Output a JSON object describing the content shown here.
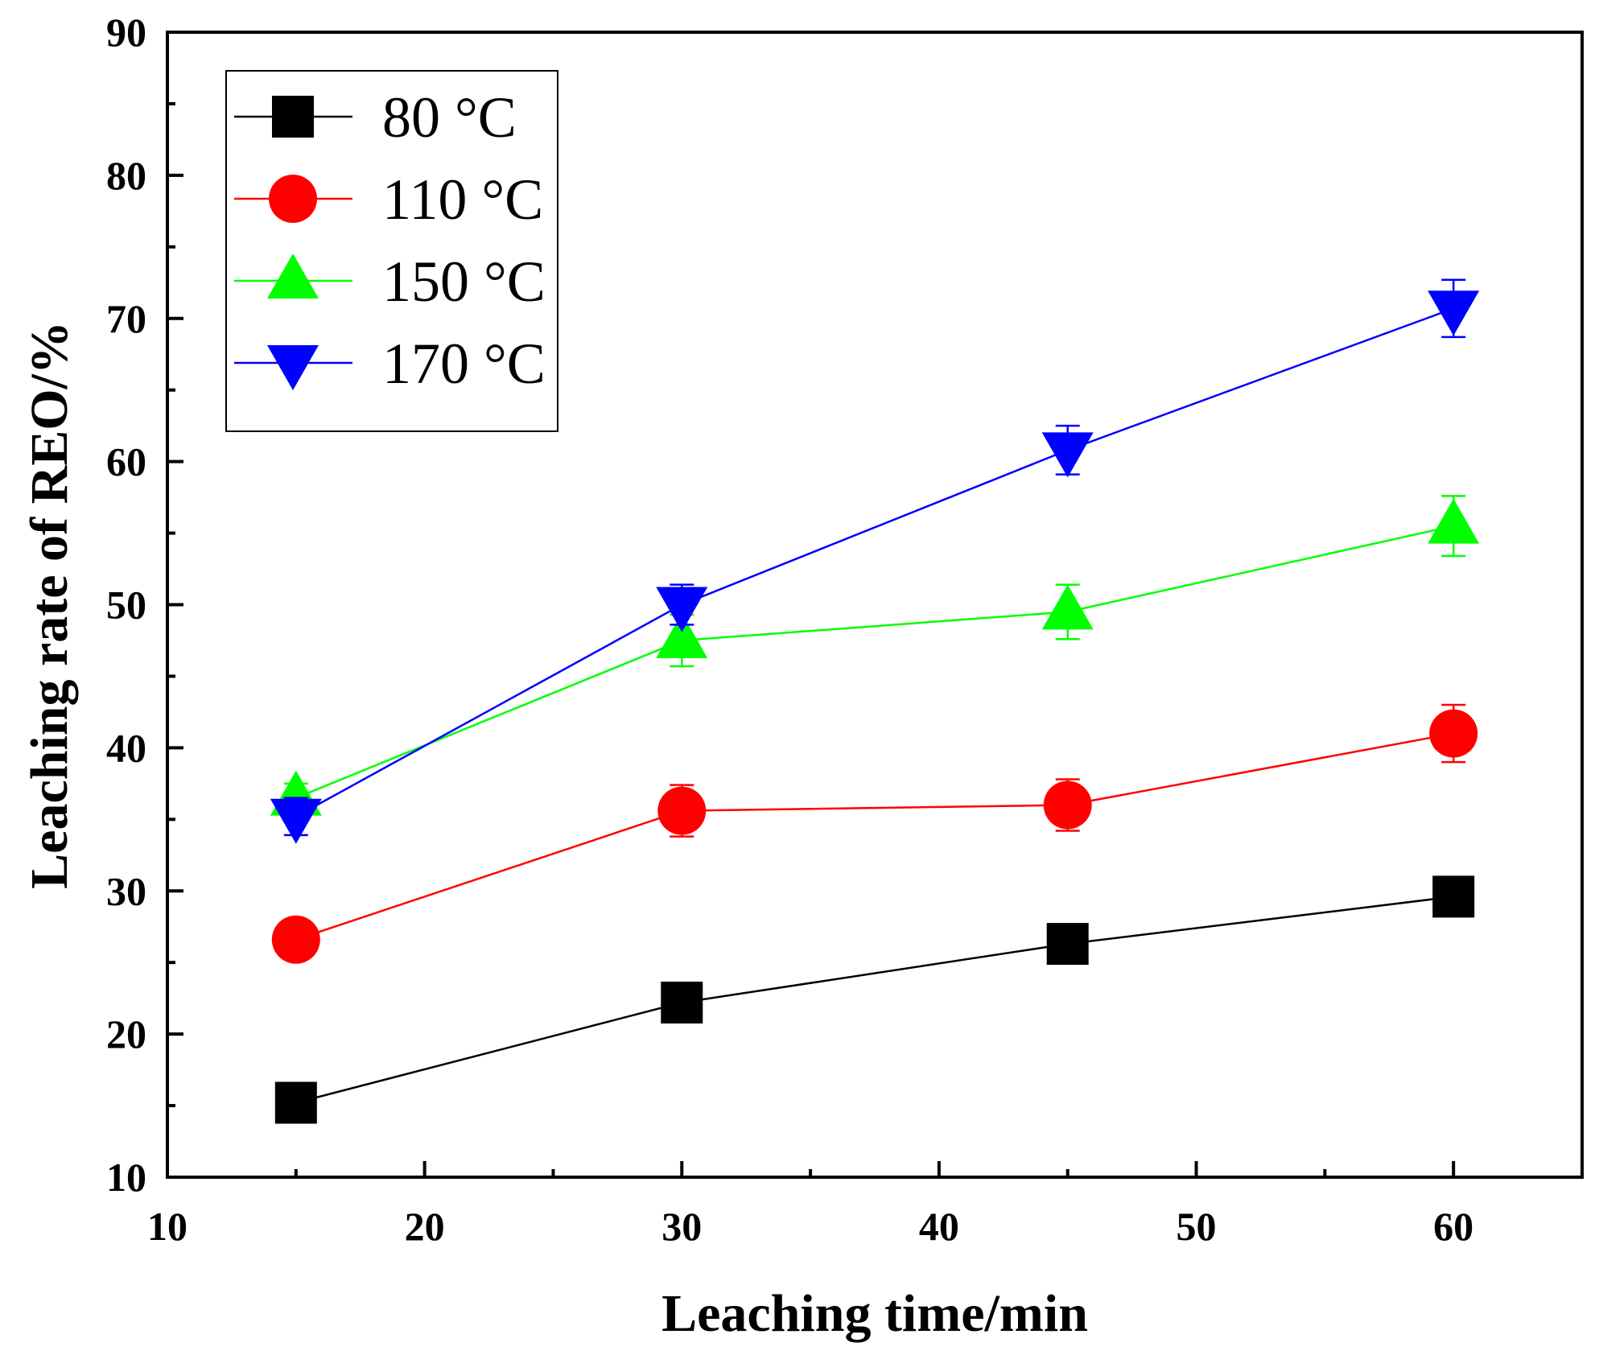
{
  "chart_data": {
    "type": "line",
    "title": "",
    "xlabel": "Leaching time/min",
    "ylabel": "Leaching rate of REO/%",
    "xlim": [
      10,
      65
    ],
    "ylim": [
      10,
      90
    ],
    "xticks": [
      10,
      20,
      30,
      40,
      50,
      60
    ],
    "yticks": [
      10,
      20,
      30,
      40,
      50,
      60,
      70,
      80,
      90
    ],
    "x": [
      15,
      30,
      45,
      60
    ],
    "legend_position": "top-left",
    "grid": false,
    "series": [
      {
        "name": "80 °C",
        "color": "#000000",
        "marker": "square",
        "values": [
          15.2,
          22.2,
          26.3,
          29.6
        ],
        "errors": [
          0.5,
          0.6,
          0.8,
          1.1
        ]
      },
      {
        "name": "110 °C",
        "color": "#ff0000",
        "marker": "circle",
        "values": [
          26.6,
          35.6,
          36.0,
          41.0
        ],
        "errors": [
          1.3,
          1.8,
          1.8,
          2.0
        ]
      },
      {
        "name": "150 °C",
        "color": "#00ff00",
        "marker": "triangle-up",
        "values": [
          36.5,
          47.5,
          49.5,
          55.5
        ],
        "errors": [
          1.0,
          1.8,
          1.9,
          2.1
        ]
      },
      {
        "name": "170 °C",
        "color": "#0000ff",
        "marker": "triangle-down",
        "values": [
          35.2,
          50.0,
          60.8,
          70.7
        ],
        "errors": [
          1.3,
          1.4,
          1.7,
          2.0
        ]
      }
    ]
  }
}
